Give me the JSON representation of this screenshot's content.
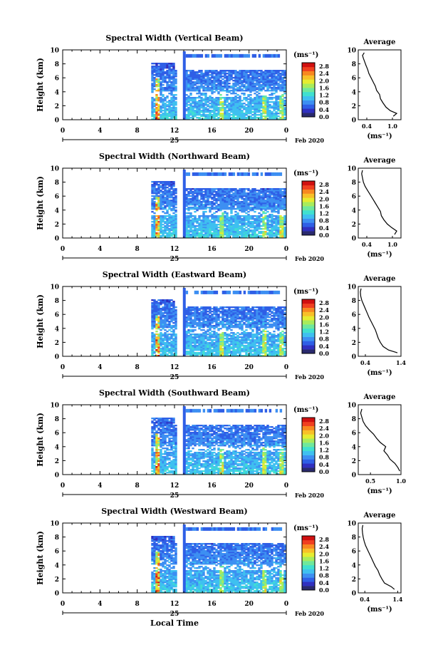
{
  "figure": {
    "xlabel": "Local Time",
    "date_label": "Feb 2020",
    "day_label": "25",
    "average_title": "Average",
    "unit": "(ms⁻¹)",
    "colormap": [
      "#2a2a6e",
      "#3030c0",
      "#2f5fe6",
      "#3d8ff2",
      "#3fc0f0",
      "#40e0d0",
      "#6fe89c",
      "#a8ec5c",
      "#e6ec30",
      "#f8c028",
      "#f88820",
      "#f04020",
      "#d01010"
    ]
  },
  "chart_data": [
    {
      "type": "heatmap",
      "title": "Spectral Width (Vertical Beam)",
      "ylabel": "Height (km)",
      "xlim": [
        0,
        24
      ],
      "ylim": [
        0,
        10
      ],
      "xticks": [
        "0",
        "4",
        "8",
        "12",
        "16",
        "20",
        "0"
      ],
      "yticks": [
        "0",
        "2",
        "4",
        "6",
        "8",
        "10"
      ],
      "colorbar": {
        "ticks": [
          "0.0",
          "0.4",
          "0.8",
          "1.2",
          "1.6",
          "2.0",
          "2.4",
          "2.8"
        ],
        "range": [
          0,
          3.0
        ]
      },
      "average": {
        "xlim": [
          0.2,
          1.2
        ],
        "xticks": [
          "0.4",
          "1.0"
        ],
        "ylim": [
          0,
          10
        ],
        "profile": [
          [
            1.02,
            0.5
          ],
          [
            1.1,
            0.9
          ],
          [
            0.95,
            1.3
          ],
          [
            0.85,
            1.8
          ],
          [
            0.78,
            2.4
          ],
          [
            0.72,
            3.0
          ],
          [
            0.7,
            3.6
          ],
          [
            0.63,
            4.2
          ],
          [
            0.6,
            4.8
          ],
          [
            0.55,
            5.4
          ],
          [
            0.5,
            6.0
          ],
          [
            0.45,
            6.6
          ],
          [
            0.42,
            7.2
          ],
          [
            0.38,
            7.8
          ],
          [
            0.35,
            8.3
          ],
          [
            0.32,
            8.8
          ],
          [
            0.3,
            9.2
          ],
          [
            0.34,
            9.6
          ]
        ]
      }
    },
    {
      "type": "heatmap",
      "title": "Spectral Width (Northward Beam)",
      "ylabel": "Height (km)",
      "xlim": [
        0,
        24
      ],
      "ylim": [
        0,
        10
      ],
      "xticks": [
        "0",
        "4",
        "8",
        "12",
        "16",
        "20",
        "0"
      ],
      "yticks": [
        "0",
        "2",
        "4",
        "6",
        "8",
        "10"
      ],
      "colorbar": {
        "ticks": [
          "0.0",
          "0.4",
          "0.8",
          "1.2",
          "1.6",
          "2.0",
          "2.4",
          "2.8"
        ],
        "range": [
          0,
          3.0
        ]
      },
      "average": {
        "xlim": [
          0.2,
          1.2
        ],
        "xticks": [
          "0.4",
          "1.0"
        ],
        "ylim": [
          0,
          10
        ],
        "profile": [
          [
            1.05,
            0.5
          ],
          [
            1.1,
            1.0
          ],
          [
            0.98,
            1.5
          ],
          [
            0.88,
            2.0
          ],
          [
            0.8,
            2.6
          ],
          [
            0.74,
            3.2
          ],
          [
            0.72,
            3.8
          ],
          [
            0.66,
            4.4
          ],
          [
            0.6,
            5.0
          ],
          [
            0.54,
            5.6
          ],
          [
            0.48,
            6.2
          ],
          [
            0.42,
            6.8
          ],
          [
            0.36,
            7.4
          ],
          [
            0.32,
            8.0
          ],
          [
            0.3,
            8.6
          ],
          [
            0.28,
            9.2
          ],
          [
            0.3,
            9.7
          ]
        ]
      }
    },
    {
      "type": "heatmap",
      "title": "Spectral Width (Eastward Beam)",
      "ylabel": "Height (km)",
      "xlim": [
        0,
        24
      ],
      "ylim": [
        0,
        10
      ],
      "xticks": [
        "0",
        "4",
        "8",
        "12",
        "16",
        "20",
        "0"
      ],
      "yticks": [
        "0",
        "2",
        "4",
        "6",
        "8",
        "10"
      ],
      "colorbar": {
        "ticks": [
          "0.0",
          "0.4",
          "0.8",
          "1.2",
          "1.6",
          "2.0",
          "2.4",
          "2.8"
        ],
        "range": [
          0,
          3.0
        ]
      },
      "average": {
        "xlim": [
          0.2,
          1.4
        ],
        "xticks": [
          "0.4",
          "1.4"
        ],
        "ylim": [
          0,
          10
        ],
        "profile": [
          [
            1.3,
            0.5
          ],
          [
            1.05,
            0.9
          ],
          [
            0.9,
            1.4
          ],
          [
            0.82,
            2.0
          ],
          [
            0.76,
            2.6
          ],
          [
            0.72,
            3.2
          ],
          [
            0.68,
            3.8
          ],
          [
            0.62,
            4.4
          ],
          [
            0.56,
            5.0
          ],
          [
            0.5,
            5.6
          ],
          [
            0.45,
            6.2
          ],
          [
            0.4,
            6.8
          ],
          [
            0.35,
            7.4
          ],
          [
            0.3,
            8.0
          ],
          [
            0.27,
            8.6
          ],
          [
            0.26,
            9.2
          ],
          [
            0.28,
            9.7
          ]
        ]
      }
    },
    {
      "type": "heatmap",
      "title": "Spectral Width (Southward Beam)",
      "ylabel": "Height (km)",
      "xlim": [
        0,
        24
      ],
      "ylim": [
        0,
        10
      ],
      "xticks": [
        "0",
        "4",
        "8",
        "12",
        "16",
        "20",
        "0"
      ],
      "yticks": [
        "0",
        "2",
        "4",
        "6",
        "8",
        "10"
      ],
      "colorbar": {
        "ticks": [
          "0.0",
          "0.4",
          "0.8",
          "1.2",
          "1.6",
          "2.0",
          "2.4",
          "2.8"
        ],
        "range": [
          0,
          3.0
        ]
      },
      "average": {
        "xlim": [
          0.3,
          1.0
        ],
        "xticks": [
          "0.5",
          "1.0"
        ],
        "ylim": [
          0,
          10
        ],
        "profile": [
          [
            0.98,
            0.5
          ],
          [
            0.95,
            1.0
          ],
          [
            0.9,
            1.6
          ],
          [
            0.82,
            2.2
          ],
          [
            0.78,
            2.8
          ],
          [
            0.72,
            3.4
          ],
          [
            0.75,
            4.0
          ],
          [
            0.66,
            4.6
          ],
          [
            0.6,
            5.2
          ],
          [
            0.55,
            5.8
          ],
          [
            0.48,
            6.4
          ],
          [
            0.42,
            7.0
          ],
          [
            0.38,
            7.6
          ],
          [
            0.36,
            8.2
          ],
          [
            0.34,
            8.8
          ],
          [
            0.36,
            9.4
          ]
        ]
      }
    },
    {
      "type": "heatmap",
      "title": "Spectral Width (Westward Beam)",
      "ylabel": "Height (km)",
      "xlim": [
        0,
        24
      ],
      "ylim": [
        0,
        10
      ],
      "xticks": [
        "0",
        "4",
        "8",
        "12",
        "16",
        "20",
        "0"
      ],
      "yticks": [
        "0",
        "2",
        "4",
        "6",
        "8",
        "10"
      ],
      "colorbar": {
        "ticks": [
          "0.0",
          "0.4",
          "0.8",
          "1.2",
          "1.6",
          "2.0",
          "2.4",
          "2.8"
        ],
        "range": [
          0,
          3.0
        ]
      },
      "average": {
        "xlim": [
          0.2,
          1.5
        ],
        "xticks": [
          "0.4",
          "1.4"
        ],
        "ylim": [
          0,
          10
        ],
        "profile": [
          [
            1.3,
            0.5
          ],
          [
            1.2,
            0.9
          ],
          [
            1.0,
            1.4
          ],
          [
            0.92,
            2.0
          ],
          [
            0.85,
            2.6
          ],
          [
            0.8,
            3.2
          ],
          [
            0.72,
            3.8
          ],
          [
            0.66,
            4.4
          ],
          [
            0.6,
            5.0
          ],
          [
            0.54,
            5.6
          ],
          [
            0.48,
            6.2
          ],
          [
            0.42,
            6.8
          ],
          [
            0.38,
            7.4
          ],
          [
            0.35,
            8.0
          ],
          [
            0.33,
            8.6
          ],
          [
            0.32,
            9.2
          ],
          [
            0.34,
            9.7
          ]
        ]
      }
    }
  ]
}
